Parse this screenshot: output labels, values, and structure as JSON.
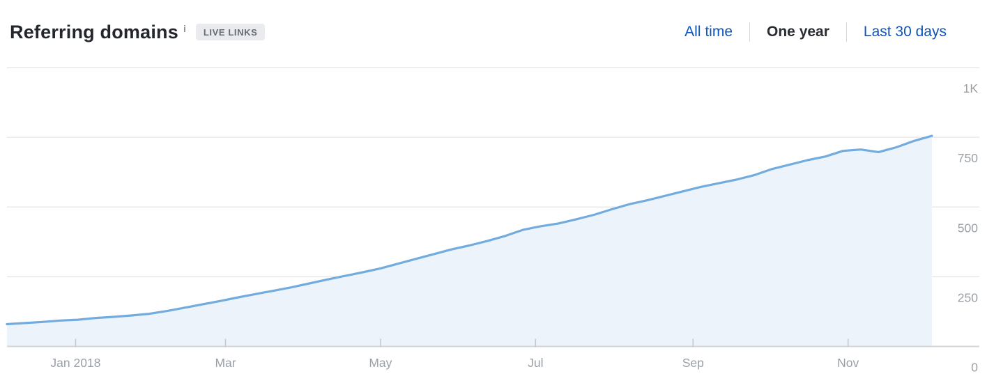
{
  "header": {
    "title": "Referring domains",
    "info_icon": "i",
    "badge": "LIVE LINKS",
    "tabs": [
      {
        "label": "All time",
        "active": false
      },
      {
        "label": "One year",
        "active": true
      },
      {
        "label": "Last 30 days",
        "active": false
      }
    ]
  },
  "colors": {
    "line": "#72acdf",
    "fill": "#ecf3fa",
    "grid": "#e9e9ea",
    "axis": "#d2d4d7",
    "tick": "#c4c7cb",
    "axis_text": "#9aa0a7",
    "link_blue": "#0d55be",
    "active_tab": "#2a2e34"
  },
  "chart_data": {
    "type": "area",
    "title": "Referring domains (one year)",
    "xlabel": "",
    "ylabel": "",
    "ylim": [
      0,
      1000
    ],
    "grid": true,
    "legend": "none",
    "y_ticks": [
      {
        "label": "1K",
        "value": 1000
      },
      {
        "label": "750",
        "value": 750
      },
      {
        "label": "500",
        "value": 500
      },
      {
        "label": "250",
        "value": 250
      },
      {
        "label": "0",
        "value": 0
      }
    ],
    "x_range_days": [
      0,
      364
    ],
    "x_ticks": [
      {
        "label": "Jan 2018",
        "day": 27
      },
      {
        "label": "Mar",
        "day": 86
      },
      {
        "label": "May",
        "day": 147
      },
      {
        "label": "Jul",
        "day": 208
      },
      {
        "label": "Sep",
        "day": 270
      },
      {
        "label": "Nov",
        "day": 331
      }
    ],
    "series": [
      {
        "name": "Referring domains",
        "points": [
          [
            0,
            80
          ],
          [
            7,
            84
          ],
          [
            14,
            88
          ],
          [
            21,
            93
          ],
          [
            28,
            96
          ],
          [
            35,
            102
          ],
          [
            42,
            106
          ],
          [
            49,
            111
          ],
          [
            56,
            117
          ],
          [
            63,
            127
          ],
          [
            70,
            139
          ],
          [
            77,
            151
          ],
          [
            84,
            163
          ],
          [
            91,
            176
          ],
          [
            98,
            188
          ],
          [
            105,
            200
          ],
          [
            112,
            212
          ],
          [
            119,
            226
          ],
          [
            126,
            240
          ],
          [
            133,
            253
          ],
          [
            140,
            266
          ],
          [
            147,
            280
          ],
          [
            154,
            297
          ],
          [
            161,
            314
          ],
          [
            168,
            331
          ],
          [
            175,
            348
          ],
          [
            182,
            362
          ],
          [
            189,
            378
          ],
          [
            196,
            396
          ],
          [
            203,
            418
          ],
          [
            210,
            431
          ],
          [
            217,
            441
          ],
          [
            224,
            456
          ],
          [
            231,
            472
          ],
          [
            238,
            492
          ],
          [
            245,
            510
          ],
          [
            252,
            524
          ],
          [
            259,
            540
          ],
          [
            266,
            556
          ],
          [
            273,
            572
          ],
          [
            280,
            585
          ],
          [
            287,
            598
          ],
          [
            294,
            614
          ],
          [
            301,
            636
          ],
          [
            308,
            652
          ],
          [
            315,
            668
          ],
          [
            322,
            681
          ],
          [
            329,
            701
          ],
          [
            336,
            706
          ],
          [
            343,
            697
          ],
          [
            350,
            714
          ],
          [
            357,
            737
          ],
          [
            364,
            755
          ]
        ]
      }
    ]
  }
}
